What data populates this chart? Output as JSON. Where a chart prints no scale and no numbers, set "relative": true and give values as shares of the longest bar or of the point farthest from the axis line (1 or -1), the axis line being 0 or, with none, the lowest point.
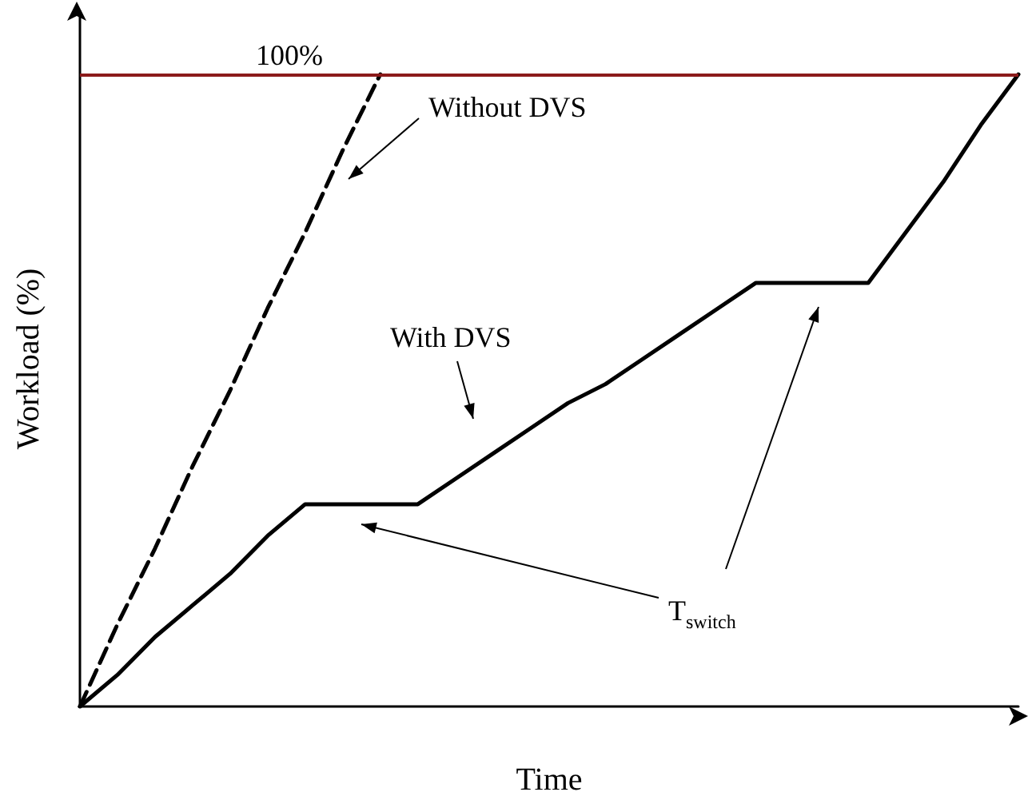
{
  "chart_data": {
    "type": "line",
    "relative": true,
    "xlabel": "Time",
    "ylabel": "Workload (%)",
    "grid": false,
    "marker": "none",
    "categories": [
      null,
      null,
      null,
      null,
      null,
      null,
      null,
      null,
      null,
      null,
      null,
      null,
      null,
      null,
      null,
      null,
      null,
      null,
      null,
      null,
      null,
      null,
      null,
      null,
      null,
      null
    ],
    "series": [
      {
        "values": [
          0,
          0.13,
          0.25,
          0.38,
          0.5,
          0.63,
          0.75,
          0.88,
          1,
          null,
          null,
          null,
          null,
          null,
          null,
          null,
          null,
          null,
          null,
          null,
          null,
          null,
          null,
          null,
          null,
          null
        ],
        "color": "#000000",
        "line_style": "dashed"
      },
      {
        "values": [
          0,
          0.05,
          0.11,
          0.16,
          0.21,
          0.27,
          0.32,
          0.32,
          0.32,
          0.32,
          0.36,
          0.4,
          0.44,
          0.48,
          0.51,
          0.55,
          0.59,
          0.63,
          0.67,
          0.67,
          0.67,
          0.67,
          0.75,
          0.83,
          0.92,
          1
        ],
        "color": "#000000",
        "line_style": "solid"
      }
    ],
    "ref_lines": [
      {
        "axis": "y",
        "value": 1,
        "label": "100%",
        "color": "#8b1a1a"
      }
    ],
    "annotations": [
      "Without DVS",
      "With DVS",
      "T$_{switch}$"
    ]
  }
}
